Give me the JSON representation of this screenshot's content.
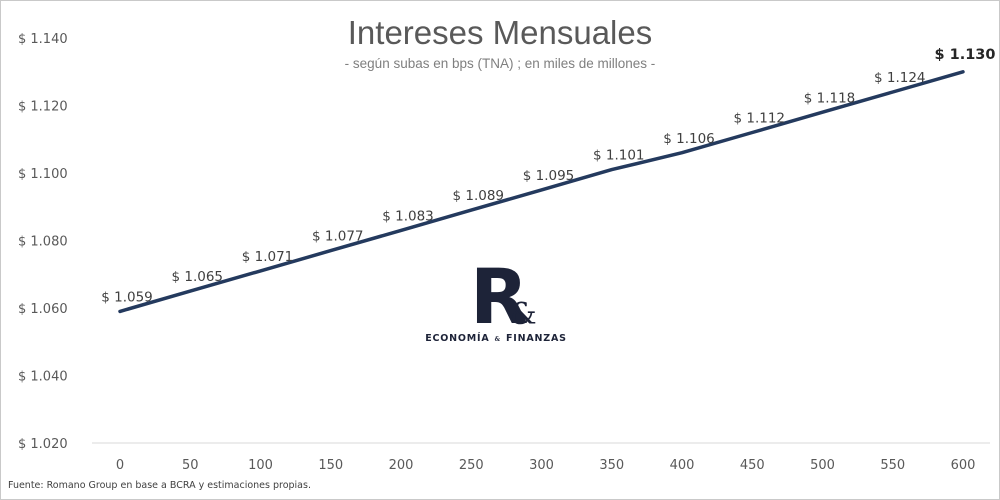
{
  "chart_data": {
    "type": "line",
    "title": "Intereses Mensuales",
    "subtitle": "- según subas en bps (TNA) ; en miles de millones -",
    "x": [
      0,
      50,
      100,
      150,
      200,
      250,
      300,
      350,
      400,
      450,
      500,
      550,
      600
    ],
    "series": [
      {
        "values": [
          1.059,
          1.065,
          1.071,
          1.077,
          1.083,
          1.089,
          1.095,
          1.101,
          1.106,
          1.112,
          1.118,
          1.124,
          1.13
        ],
        "labels": [
          "$ 1.059",
          "$ 1.065",
          "$ 1.071",
          "$ 1.077",
          "$ 1.083",
          "$ 1.089",
          "$ 1.095",
          "$ 1.101",
          "$ 1.106",
          "$ 1.112",
          "$ 1.118",
          "$ 1.124",
          "$ 1.130"
        ],
        "color": "#243a5e"
      }
    ],
    "ylim": [
      1.02,
      1.14
    ],
    "yticks": [
      1.02,
      1.04,
      1.06,
      1.08,
      1.1,
      1.12,
      1.14
    ],
    "ytick_labels": [
      "$ 1.020",
      "$ 1.040",
      "$ 1.060",
      "$ 1.080",
      "$ 1.100",
      "$ 1.120",
      "$ 1.140"
    ],
    "xtick_labels": [
      "0",
      "50",
      "100",
      "150",
      "200",
      "250",
      "300",
      "350",
      "400",
      "450",
      "500",
      "550",
      "600"
    ],
    "grid": false,
    "legend": "none"
  },
  "logo": {
    "letter": "R",
    "ampersand": "&",
    "text_left": "ECONOMÍA",
    "text_amp": "&",
    "text_right": "FINANZAS"
  },
  "source": "Fuente: Romano Group en base a BCRA y estimaciones propias.",
  "colors": {
    "line": "#243a5e",
    "text": "#595959",
    "axis": "#d9d9d9"
  }
}
